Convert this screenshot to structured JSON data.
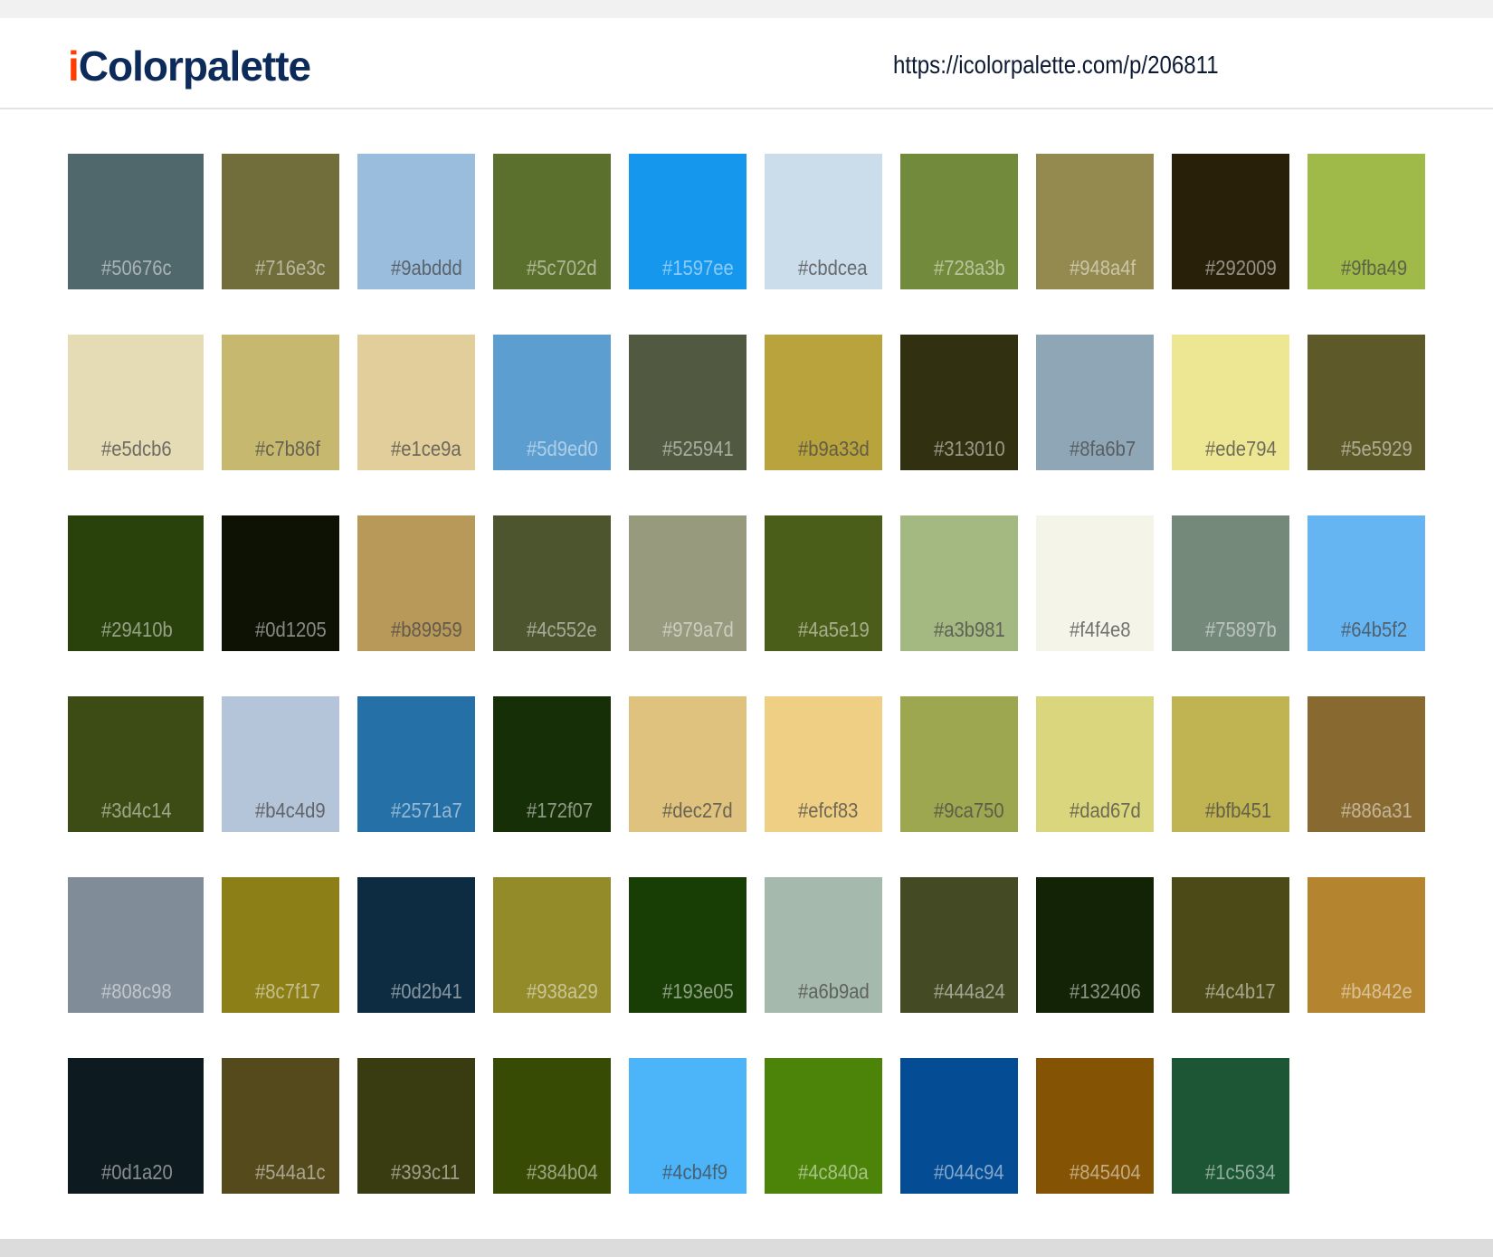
{
  "header": {
    "logo_i": "i",
    "logo_rest": "Colorpalette",
    "url": "https://icolorpalette.com/p/206811",
    "logo_colors": {
      "i": "#ff3d00",
      "text": "#0d2b5a"
    }
  },
  "swatches": [
    [
      "#50676c",
      "#716e3c",
      "#9abddd",
      "#5c702d",
      "#1597ee",
      "#cbdcea",
      "#728a3b",
      "#948a4f",
      "#292009",
      "#9fba49"
    ],
    [
      "#e5dcb6",
      "#c7b86f",
      "#e1ce9a",
      "#5d9ed0",
      "#525941",
      "#b9a33d",
      "#313010",
      "#8fa6b7",
      "#ede794",
      "#5e5929"
    ],
    [
      "#29410b",
      "#0d1205",
      "#b89959",
      "#4c552e",
      "#979a7d",
      "#4a5e19",
      "#a3b981",
      "#f4f4e8",
      "#75897b",
      "#64b5f2"
    ],
    [
      "#3d4c14",
      "#b4c4d9",
      "#2571a7",
      "#172f07",
      "#dec27d",
      "#efcf83",
      "#9ca750",
      "#dad67d",
      "#bfb451",
      "#886a31"
    ],
    [
      "#808c98",
      "#8c7f17",
      "#0d2b41",
      "#938a29",
      "#193e05",
      "#a6b9ad",
      "#444a24",
      "#132406",
      "#4c4b17",
      "#b4842e"
    ],
    [
      "#0d1a20",
      "#544a1c",
      "#393c11",
      "#384b04",
      "#4cb4f9",
      "#4c840a",
      "#044c94",
      "#845404",
      "#1c5634"
    ]
  ]
}
